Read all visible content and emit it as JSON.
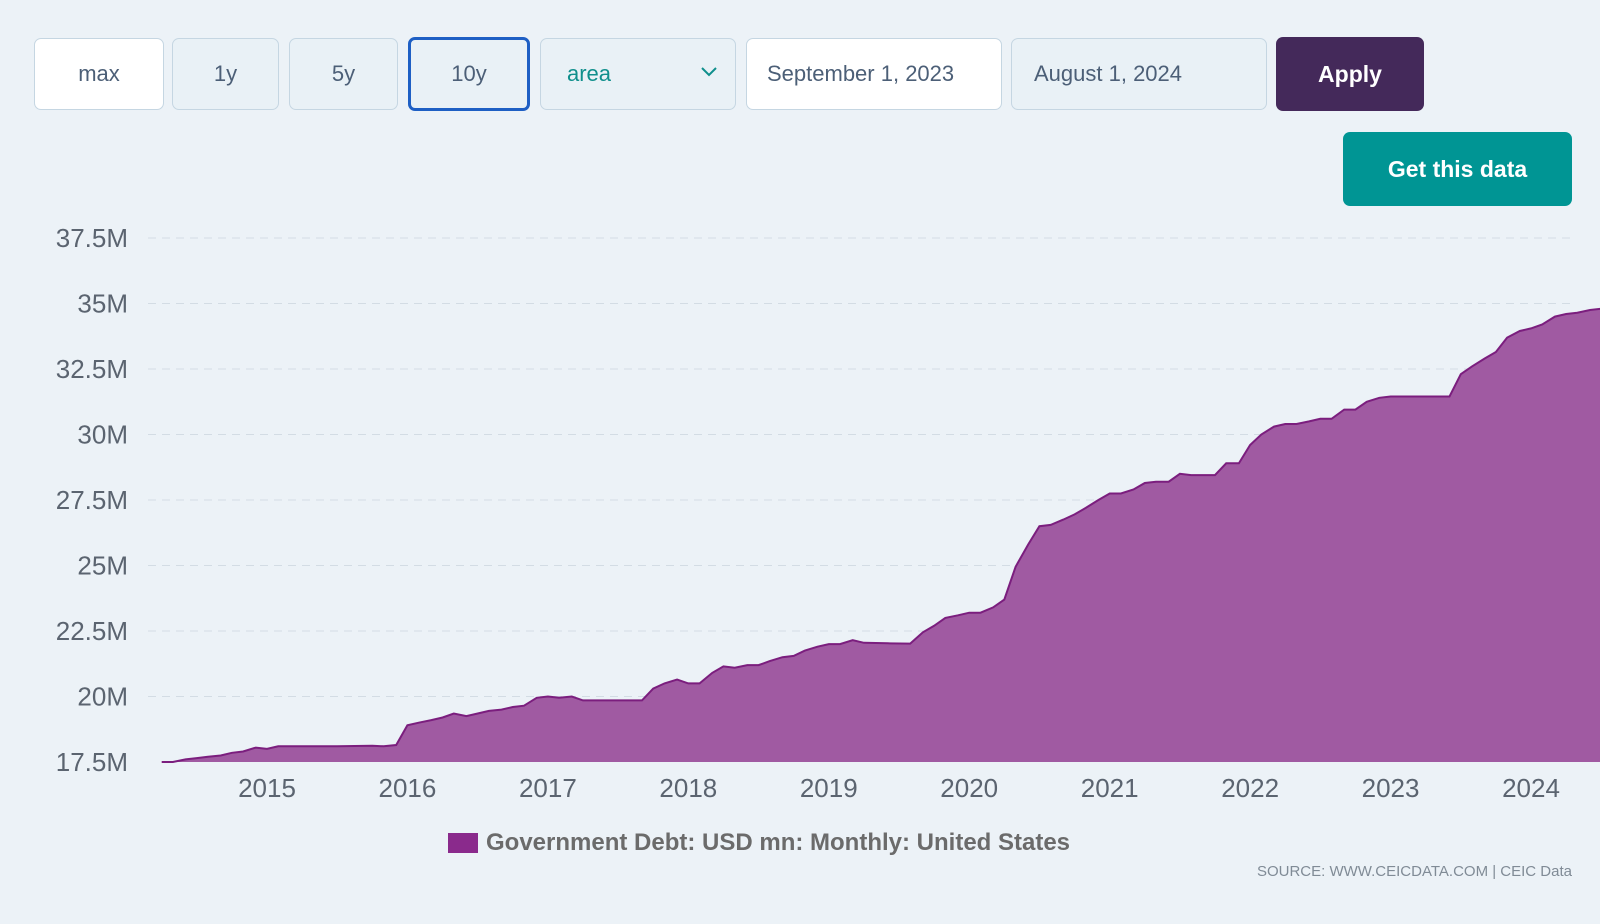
{
  "controls": {
    "ranges": [
      "max",
      "1y",
      "5y",
      "10y"
    ],
    "active_range": "10y",
    "chart_type": "area",
    "start_date": "September 1, 2023",
    "end_date": "August 1, 2024",
    "apply_label": "Apply",
    "get_data_label": "Get this data"
  },
  "colors": {
    "area_fill": "#a05aa2",
    "area_line": "#7b1e7e",
    "legend_swatch": "#8a2a8c",
    "apply_bg": "#44295a",
    "get_data_bg": "#009594"
  },
  "legend": {
    "label": "Government Debt: USD mn: Monthly: United States"
  },
  "source": "SOURCE: WWW.CEICDATA.COM | CEIC Data",
  "chart_data": {
    "type": "area",
    "title": "",
    "xlabel": "",
    "ylabel": "",
    "grid": true,
    "legend_position": "bottom",
    "ylim": [
      17.5,
      37.5
    ],
    "y_ticks": [
      17.5,
      20,
      22.5,
      25,
      27.5,
      30,
      32.5,
      35,
      37.5
    ],
    "y_tick_labels": [
      "17.5M",
      "20M",
      "22.5M",
      "25M",
      "27.5M",
      "30M",
      "32.5M",
      "35M",
      "37.5M"
    ],
    "x_ticks": [
      2015,
      2016,
      2017,
      2018,
      2019,
      2020,
      2021,
      2022,
      2023,
      2024
    ],
    "x_tick_labels": [
      "2015",
      "2016",
      "2017",
      "2018",
      "2019",
      "2020",
      "2021",
      "2022",
      "2023",
      "2024"
    ],
    "series": [
      {
        "name": "Government Debt: USD mn: Monthly: United States",
        "x": [
          2014.25,
          2014.33,
          2014.42,
          2014.5,
          2014.58,
          2014.67,
          2014.75,
          2014.83,
          2014.92,
          2015.0,
          2015.08,
          2015.17,
          2015.25,
          2015.5,
          2015.75,
          2015.83,
          2015.92,
          2016.0,
          2016.08,
          2016.17,
          2016.25,
          2016.33,
          2016.42,
          2016.5,
          2016.58,
          2016.67,
          2016.75,
          2016.83,
          2016.92,
          2017.0,
          2017.08,
          2017.17,
          2017.25,
          2017.5,
          2017.67,
          2017.75,
          2017.83,
          2017.92,
          2018.0,
          2018.08,
          2018.17,
          2018.25,
          2018.33,
          2018.42,
          2018.5,
          2018.58,
          2018.67,
          2018.75,
          2018.83,
          2018.92,
          2019.0,
          2019.08,
          2019.17,
          2019.25,
          2019.42,
          2019.58,
          2019.67,
          2019.75,
          2019.83,
          2019.92,
          2020.0,
          2020.08,
          2020.17,
          2020.25,
          2020.33,
          2020.42,
          2020.5,
          2020.58,
          2020.67,
          2020.75,
          2020.83,
          2020.92,
          2021.0,
          2021.08,
          2021.17,
          2021.25,
          2021.33,
          2021.42,
          2021.5,
          2021.58,
          2021.67,
          2021.75,
          2021.83,
          2021.92,
          2022.0,
          2022.08,
          2022.17,
          2022.25,
          2022.33,
          2022.42,
          2022.5,
          2022.58,
          2022.67,
          2022.75,
          2022.83,
          2022.92,
          2023.0,
          2023.08,
          2023.17,
          2023.25,
          2023.33,
          2023.42,
          2023.5,
          2023.58,
          2023.67,
          2023.75,
          2023.83,
          2023.92,
          2024.0,
          2024.08,
          2024.17,
          2024.25,
          2024.33,
          2024.42,
          2024.5,
          2024.58
        ],
        "values": [
          17.5,
          17.5,
          17.6,
          17.65,
          17.7,
          17.75,
          17.85,
          17.9,
          18.05,
          18.0,
          18.1,
          18.1,
          18.1,
          18.1,
          18.12,
          18.1,
          18.15,
          18.9,
          19.0,
          19.1,
          19.2,
          19.35,
          19.25,
          19.35,
          19.45,
          19.5,
          19.6,
          19.65,
          19.95,
          20.0,
          19.95,
          20.0,
          19.85,
          19.85,
          19.85,
          20.3,
          20.5,
          20.65,
          20.5,
          20.5,
          20.9,
          21.15,
          21.1,
          21.2,
          21.2,
          21.35,
          21.5,
          21.55,
          21.75,
          21.9,
          22.0,
          22.0,
          22.15,
          22.05,
          22.03,
          22.02,
          22.45,
          22.7,
          23.0,
          23.1,
          23.2,
          23.2,
          23.4,
          23.7,
          24.95,
          25.8,
          26.5,
          26.55,
          26.75,
          26.95,
          27.2,
          27.5,
          27.75,
          27.75,
          27.9,
          28.15,
          28.2,
          28.2,
          28.5,
          28.45,
          28.45,
          28.45,
          28.9,
          28.9,
          29.6,
          30.0,
          30.3,
          30.4,
          30.4,
          30.5,
          30.6,
          30.6,
          30.95,
          30.95,
          31.25,
          31.4,
          31.45,
          31.45,
          31.45,
          31.45,
          31.45,
          31.45,
          32.3,
          32.6,
          32.9,
          33.15,
          33.7,
          33.95,
          34.05,
          34.2,
          34.5,
          34.6,
          34.65,
          34.75,
          34.8,
          34.85
        ]
      }
    ]
  }
}
